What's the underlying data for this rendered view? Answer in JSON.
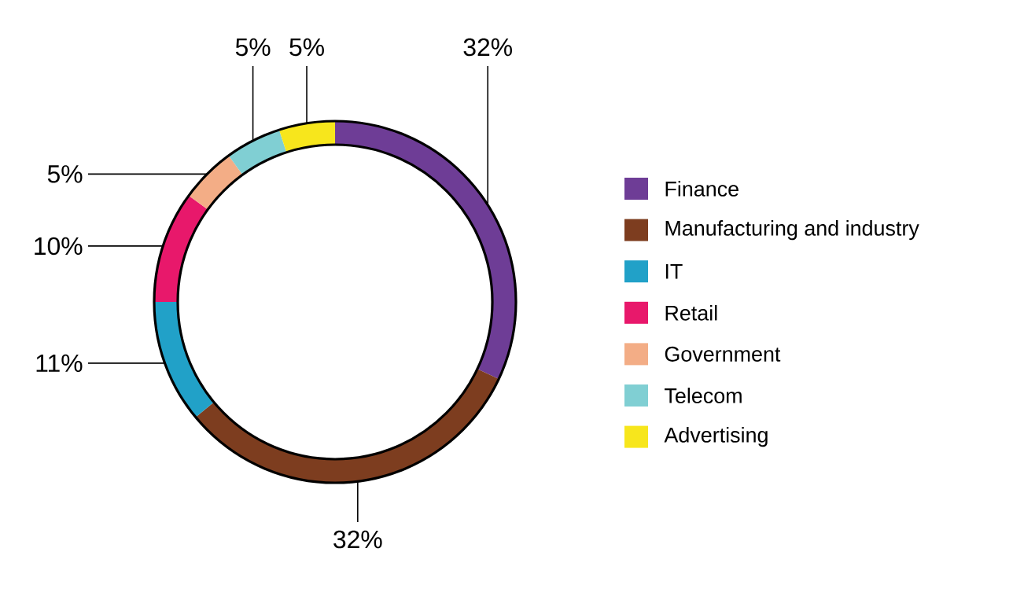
{
  "chart_data": {
    "type": "donut",
    "categories": [
      "Finance",
      "Manufacturing and industry",
      "IT",
      "Retail",
      "Government",
      "Telecom",
      "Advertising"
    ],
    "values": [
      32,
      32,
      11,
      10,
      5,
      5,
      5
    ],
    "value_labels": [
      "32%",
      "32%",
      "11%",
      "10%",
      "5%",
      "5%",
      "5%"
    ],
    "colors": [
      "#6e3d96",
      "#7d3d1f",
      "#21a1c8",
      "#e8186b",
      "#f3ad86",
      "#80cfd3",
      "#f7e61c"
    ],
    "legend": "right"
  }
}
